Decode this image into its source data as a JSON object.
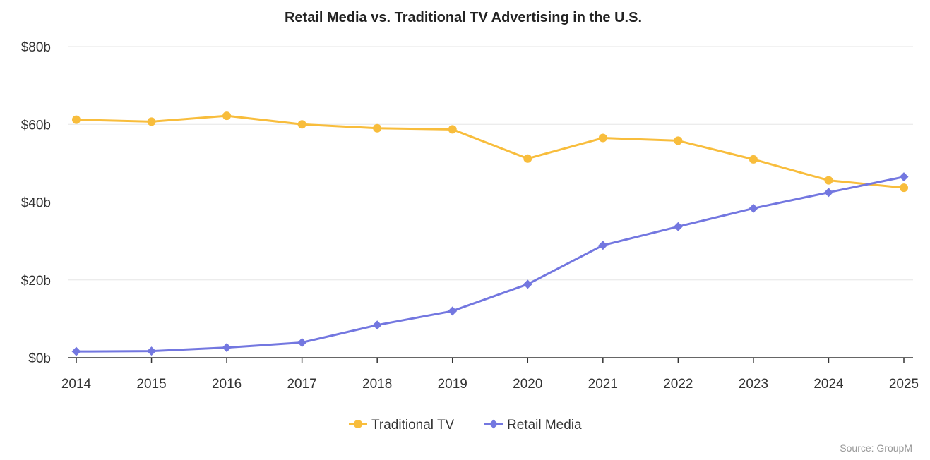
{
  "chart_data": {
    "type": "line",
    "title": "Retail Media vs. Traditional TV Advertising in the U.S.",
    "xlabel": "",
    "ylabel": "",
    "categories": [
      "2014",
      "2015",
      "2016",
      "2017",
      "2018",
      "2019",
      "2020",
      "2021",
      "2022",
      "2023",
      "2024",
      "2025"
    ],
    "ylim": [
      0,
      80
    ],
    "yticks": [
      0,
      20,
      40,
      60,
      80
    ],
    "ytick_labels": [
      "$0b",
      "$20b",
      "$40b",
      "$60b",
      "$80b"
    ],
    "grid": true,
    "legend_position": "bottom-center",
    "series": [
      {
        "name": "Traditional TV",
        "color": "#f8bd3c",
        "marker": "circle",
        "values": [
          61.2,
          60.7,
          62.2,
          60.0,
          59.0,
          58.7,
          51.2,
          56.5,
          55.8,
          51.0,
          45.6,
          43.7
        ]
      },
      {
        "name": "Retail Media",
        "color": "#7377e0",
        "marker": "diamond",
        "values": [
          1.6,
          1.7,
          2.6,
          3.9,
          8.4,
          12.0,
          18.9,
          28.9,
          33.7,
          38.4,
          42.5,
          46.5
        ]
      }
    ],
    "source": "Source: GroupM"
  }
}
